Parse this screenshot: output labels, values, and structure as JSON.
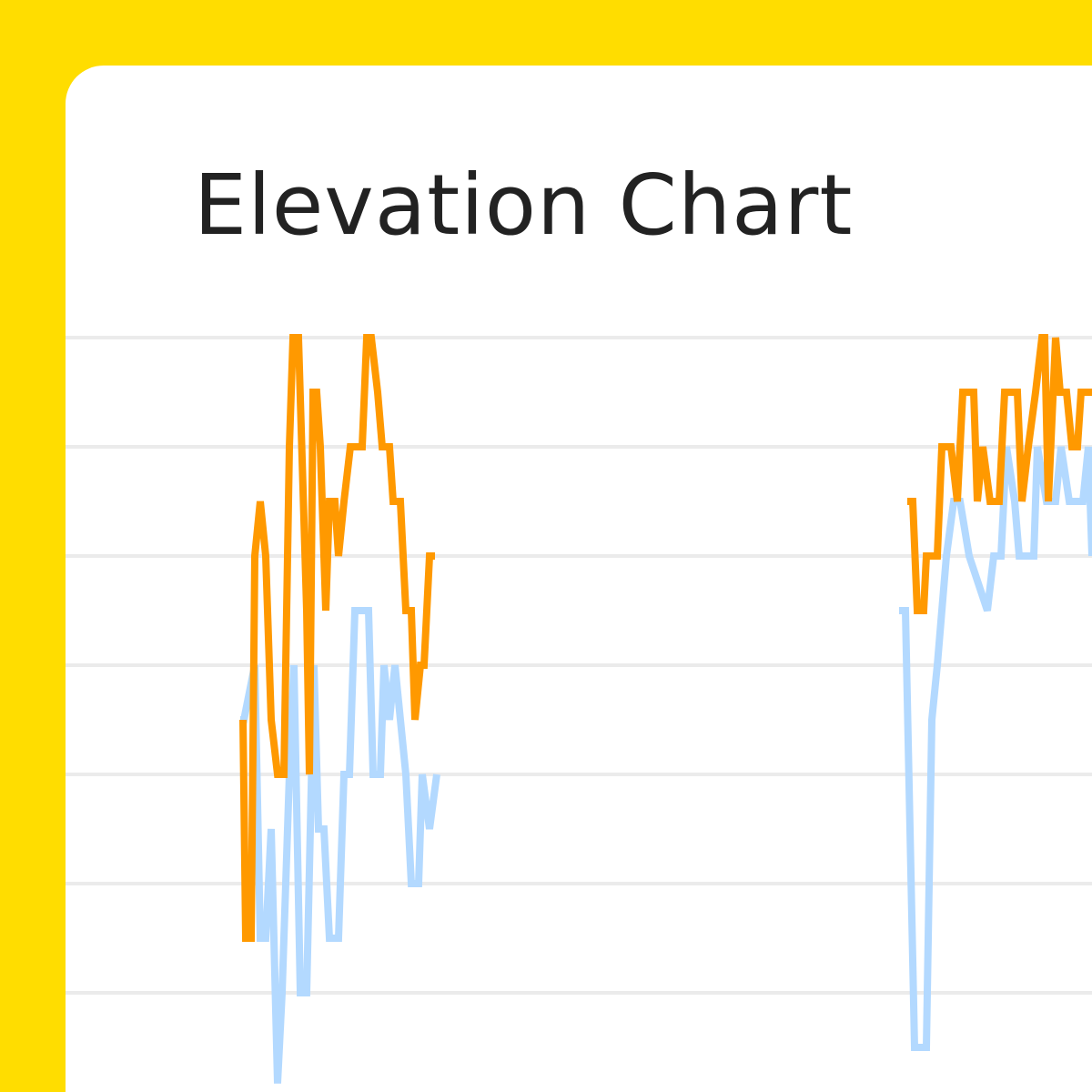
{
  "card": {
    "background": "#FFDD00"
  },
  "chart_data": {
    "type": "line",
    "title": "Elevation Chart",
    "xlabel": "",
    "ylabel": "",
    "grid": true,
    "gridlines": [
      0,
      1,
      2,
      3,
      4,
      5,
      6
    ],
    "ylim": [
      -1,
      6
    ],
    "xlim": [
      -48,
      234
    ],
    "series": [
      {
        "color": "#B3D9FF",
        "segments": [
          [
            [
              0,
              2.5
            ],
            [
              1,
              2.5
            ],
            [
              4,
              3
            ],
            [
              5.5,
              0.5
            ],
            [
              7,
              0.5
            ],
            [
              8.5,
              1.5
            ],
            [
              10.25,
              -0.83
            ],
            [
              11.5,
              0
            ],
            [
              13.5,
              2
            ],
            [
              14.75,
              3
            ],
            [
              16.5,
              0
            ],
            [
              18.25,
              0
            ],
            [
              20.25,
              3
            ],
            [
              21.5,
              1.5
            ],
            [
              23,
              1.5
            ],
            [
              24.5,
              0.5
            ],
            [
              27,
              0.5
            ],
            [
              28.5,
              2
            ],
            [
              30,
              2
            ],
            [
              31.5,
              3.5
            ],
            [
              35.25,
              3.5
            ],
            [
              36.5,
              2
            ],
            [
              38.5,
              2
            ],
            [
              39.5,
              3
            ],
            [
              41,
              2.5
            ],
            [
              42.5,
              3
            ],
            [
              44,
              2.5
            ],
            [
              45.5,
              2
            ],
            [
              47,
              1
            ],
            [
              49,
              1
            ],
            [
              50,
              2
            ],
            [
              52,
              1.5
            ],
            [
              54,
              2
            ]
          ],
          [
            [
              181,
              3.5
            ],
            [
              182.75,
              3.5
            ],
            [
              185.25,
              -0.5
            ],
            [
              188.5,
              -0.5
            ],
            [
              190,
              2.5
            ],
            [
              191.5,
              3
            ],
            [
              194,
              4
            ],
            [
              196,
              4.5
            ],
            [
              197.75,
              4.5
            ],
            [
              200.25,
              4
            ],
            [
              205.25,
              3.5
            ],
            [
              207,
              4
            ],
            [
              209,
              4
            ],
            [
              210.5,
              5
            ],
            [
              212.75,
              4.5
            ],
            [
              214,
              4
            ],
            [
              218,
              4
            ],
            [
              219,
              5
            ],
            [
              221.5,
              4.5
            ],
            [
              224,
              4.5
            ],
            [
              225.5,
              5
            ],
            [
              227.75,
              4.5
            ],
            [
              231.5,
              4.5
            ],
            [
              233,
              5
            ],
            [
              234,
              4
            ]
          ]
        ]
      },
      {
        "color": "#FF9900",
        "segments": [
          [
            [
              0.75,
              2.5
            ],
            [
              1.5,
              0.5
            ],
            [
              3,
              0.5
            ],
            [
              4,
              4
            ],
            [
              5.5,
              4.5
            ],
            [
              7,
              4
            ],
            [
              8.5,
              2.5
            ],
            [
              10.25,
              2
            ],
            [
              12,
              2
            ],
            [
              13.5,
              5
            ],
            [
              14.5,
              6
            ],
            [
              16,
              6
            ],
            [
              18.25,
              3.5
            ],
            [
              19,
              2
            ],
            [
              20,
              5.5
            ],
            [
              21,
              5.5
            ],
            [
              22,
              5
            ],
            [
              23.5,
              3.5
            ],
            [
              24.5,
              4.5
            ],
            [
              26,
              4.5
            ],
            [
              27,
              4
            ],
            [
              28.5,
              4.5
            ],
            [
              30.25,
              5
            ],
            [
              33.5,
              5
            ],
            [
              34.75,
              6
            ],
            [
              36,
              6
            ],
            [
              37.75,
              5.5
            ],
            [
              39,
              5
            ],
            [
              41,
              5
            ],
            [
              42,
              4.5
            ],
            [
              44,
              4.5
            ],
            [
              45.5,
              3.5
            ],
            [
              47,
              3.5
            ],
            [
              48,
              2.5
            ],
            [
              49.5,
              3
            ],
            [
              50.5,
              3
            ],
            [
              52,
              4
            ],
            [
              53.5,
              4
            ]
          ],
          [
            [
              183.25,
              4.5
            ],
            [
              184.75,
              4.5
            ],
            [
              186,
              3.5
            ],
            [
              187.75,
              3.5
            ],
            [
              188.5,
              4
            ],
            [
              191.5,
              4
            ],
            [
              192.75,
              5
            ],
            [
              195.25,
              5
            ],
            [
              197,
              4.5
            ],
            [
              198.5,
              5.5
            ],
            [
              201.5,
              5.5
            ],
            [
              202.5,
              4.5
            ],
            [
              204,
              5
            ],
            [
              206,
              4.5
            ],
            [
              208.5,
              4.5
            ],
            [
              210,
              5.5
            ],
            [
              213.5,
              5.5
            ],
            [
              214.75,
              4.5
            ],
            [
              216.5,
              5
            ],
            [
              218.5,
              5.5
            ],
            [
              220.25,
              6
            ],
            [
              221,
              6
            ],
            [
              222,
              4.5
            ],
            [
              224,
              6
            ],
            [
              225.25,
              5.5
            ],
            [
              227,
              5.5
            ],
            [
              228.5,
              5
            ],
            [
              230,
              5
            ],
            [
              231,
              5.5
            ],
            [
              234,
              5.5
            ]
          ]
        ]
      }
    ]
  }
}
